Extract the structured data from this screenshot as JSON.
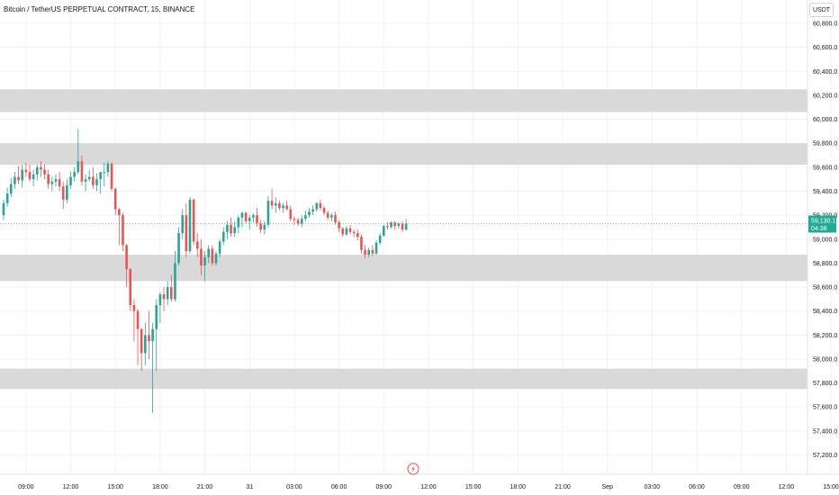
{
  "header": {
    "title": "Bitcoin / TetherUS PERPETUAL CONTRACT, 15, BINANCE",
    "currency_label": "USDT"
  },
  "price_axis": {
    "ticks": [
      "60,800.0",
      "60,600.0",
      "60,400.0",
      "60,200.0",
      "60,000.0",
      "59,800.0",
      "59,600.0",
      "59,400.0",
      "59,200.0",
      "59,000.0",
      "58,800.0",
      "58,600.0",
      "58,400.0",
      "58,200.0",
      "58,000.0",
      "57,800.0",
      "57,600.0",
      "57,400.0",
      "57,200.0"
    ],
    "current_price": "59,130.1",
    "countdown": "04:38"
  },
  "time_axis": {
    "ticks": [
      "09:00",
      "12:00",
      "15:00",
      "18:00",
      "21:00",
      "31",
      "03:00",
      "06:00",
      "09:00",
      "12:00",
      "15:00",
      "18:00",
      "21:00",
      "Sep",
      "03:00",
      "06:00",
      "09:00",
      "12:00",
      "15:00"
    ]
  },
  "colors": {
    "up": "#26a69a",
    "down": "#ef5350",
    "zone": "#d9d9d9",
    "label_bg": "#22ab94"
  },
  "chart_data": {
    "type": "candlestick",
    "ylim": [
      57130,
      60850
    ],
    "x_start": "Aug 30 07:30",
    "interval_minutes": 15,
    "zones": [
      [
        60060,
        60250
      ],
      [
        59620,
        59800
      ],
      [
        58650,
        58870
      ],
      [
        57750,
        57920
      ]
    ],
    "candles": [
      [
        59200,
        59330,
        59160,
        59300
      ],
      [
        59300,
        59430,
        59270,
        59380
      ],
      [
        59380,
        59510,
        59350,
        59460
      ],
      [
        59460,
        59560,
        59420,
        59520
      ],
      [
        59520,
        59610,
        59460,
        59490
      ],
      [
        59490,
        59620,
        59430,
        59580
      ],
      [
        59580,
        59640,
        59520,
        59560
      ],
      [
        59560,
        59620,
        59480,
        59500
      ],
      [
        59500,
        59580,
        59440,
        59540
      ],
      [
        59540,
        59620,
        59490,
        59600
      ],
      [
        59600,
        59650,
        59520,
        59580
      ],
      [
        59580,
        59620,
        59500,
        59540
      ],
      [
        59540,
        59580,
        59420,
        59460
      ],
      [
        59460,
        59520,
        59400,
        59480
      ],
      [
        59480,
        59540,
        59440,
        59500
      ],
      [
        59500,
        59560,
        59400,
        59440
      ],
      [
        59440,
        59480,
        59250,
        59330
      ],
      [
        59330,
        59500,
        59300,
        59450
      ],
      [
        59450,
        59560,
        59420,
        59520
      ],
      [
        59520,
        59600,
        59480,
        59560
      ],
      [
        59560,
        59920,
        59540,
        59650
      ],
      [
        59650,
        59700,
        59450,
        59480
      ],
      [
        59480,
        59540,
        59400,
        59500
      ],
      [
        59500,
        59580,
        59480,
        59520
      ],
      [
        59520,
        59600,
        59420,
        59450
      ],
      [
        59450,
        59550,
        59400,
        59500
      ],
      [
        59500,
        59560,
        59380,
        59560
      ],
      [
        59560,
        59640,
        59440,
        59560
      ],
      [
        59560,
        59650,
        59520,
        59630
      ],
      [
        59630,
        59640,
        59400,
        59420
      ],
      [
        59420,
        59430,
        59200,
        59250
      ],
      [
        59250,
        59260,
        58950,
        59200
      ],
      [
        59200,
        59220,
        58900,
        58950
      ],
      [
        58950,
        58960,
        58600,
        58750
      ],
      [
        58750,
        58760,
        58400,
        58450
      ],
      [
        58450,
        58500,
        58150,
        58400
      ],
      [
        58400,
        58420,
        57950,
        58250
      ],
      [
        58250,
        58260,
        57900,
        58050
      ],
      [
        58050,
        58300,
        57950,
        58200
      ],
      [
        58200,
        58400,
        58000,
        58150
      ],
      [
        58150,
        58300,
        57550,
        58250
      ],
      [
        58250,
        58500,
        57900,
        58450
      ],
      [
        58450,
        58560,
        58300,
        58540
      ],
      [
        58540,
        58600,
        58400,
        58500
      ],
      [
        58500,
        58650,
        58450,
        58600
      ],
      [
        58600,
        58700,
        58480,
        58500
      ],
      [
        58500,
        58900,
        58480,
        58800
      ],
      [
        58800,
        59100,
        58780,
        59050
      ],
      [
        59050,
        59250,
        59000,
        59200
      ],
      [
        59200,
        59300,
        58850,
        58900
      ],
      [
        58900,
        59350,
        58880,
        59330
      ],
      [
        59330,
        59340,
        58950,
        58980
      ],
      [
        58980,
        59050,
        58850,
        58920
      ],
      [
        58920,
        59000,
        58700,
        58780
      ],
      [
        58780,
        58900,
        58650,
        58850
      ],
      [
        58850,
        58950,
        58800,
        58920
      ],
      [
        58920,
        58950,
        58780,
        58800
      ],
      [
        58800,
        58900,
        58780,
        58880
      ],
      [
        58880,
        59000,
        58850,
        58980
      ],
      [
        58980,
        59100,
        58950,
        59060
      ],
      [
        59060,
        59150,
        59000,
        59120
      ],
      [
        59120,
        59180,
        59020,
        59050
      ],
      [
        59050,
        59150,
        59020,
        59100
      ],
      [
        59100,
        59200,
        59050,
        59180
      ],
      [
        59180,
        59230,
        59100,
        59220
      ],
      [
        59220,
        59230,
        59130,
        59150
      ],
      [
        59150,
        59200,
        59080,
        59180
      ],
      [
        59180,
        59220,
        59140,
        59200
      ],
      [
        59200,
        59260,
        59100,
        59130
      ],
      [
        59130,
        59160,
        59050,
        59080
      ],
      [
        59080,
        59150,
        59040,
        59120
      ],
      [
        59120,
        59360,
        59100,
        59320
      ],
      [
        59320,
        59420,
        59250,
        59280
      ],
      [
        59280,
        59350,
        59220,
        59300
      ],
      [
        59300,
        59320,
        59240,
        59260
      ],
      [
        59260,
        59300,
        59220,
        59280
      ],
      [
        59280,
        59320,
        59240,
        59250
      ],
      [
        59250,
        59280,
        59150,
        59170
      ],
      [
        59170,
        59190,
        59120,
        59160
      ],
      [
        59160,
        59180,
        59110,
        59130
      ],
      [
        59130,
        59200,
        59100,
        59170
      ],
      [
        59170,
        59240,
        59150,
        59200
      ],
      [
        59200,
        59260,
        59180,
        59230
      ],
      [
        59230,
        59280,
        59200,
        59250
      ],
      [
        59250,
        59310,
        59230,
        59300
      ],
      [
        59300,
        59330,
        59240,
        59260
      ],
      [
        59260,
        59280,
        59200,
        59220
      ],
      [
        59220,
        59240,
        59160,
        59180
      ],
      [
        59180,
        59220,
        59150,
        59200
      ],
      [
        59200,
        59230,
        59120,
        59140
      ],
      [
        59140,
        59160,
        59060,
        59090
      ],
      [
        59090,
        59100,
        59020,
        59040
      ],
      [
        59040,
        59110,
        59030,
        59090
      ],
      [
        59090,
        59120,
        59040,
        59060
      ],
      [
        59060,
        59080,
        59020,
        59050
      ],
      [
        59050,
        59080,
        58990,
        59020
      ],
      [
        59020,
        59040,
        58880,
        58910
      ],
      [
        58910,
        58950,
        58840,
        58870
      ],
      [
        58870,
        58930,
        58850,
        58910
      ],
      [
        58910,
        58950,
        58860,
        58880
      ],
      [
        58880,
        58990,
        58870,
        58970
      ],
      [
        58970,
        59050,
        58950,
        59030
      ],
      [
        59030,
        59120,
        59020,
        59110
      ],
      [
        59110,
        59140,
        59080,
        59100
      ],
      [
        59100,
        59150,
        59090,
        59140
      ],
      [
        59140,
        59150,
        59080,
        59110
      ],
      [
        59110,
        59140,
        59090,
        59130
      ],
      [
        59130,
        59150,
        59060,
        59080
      ],
      [
        59080,
        59170,
        59070,
        59130
      ]
    ]
  }
}
